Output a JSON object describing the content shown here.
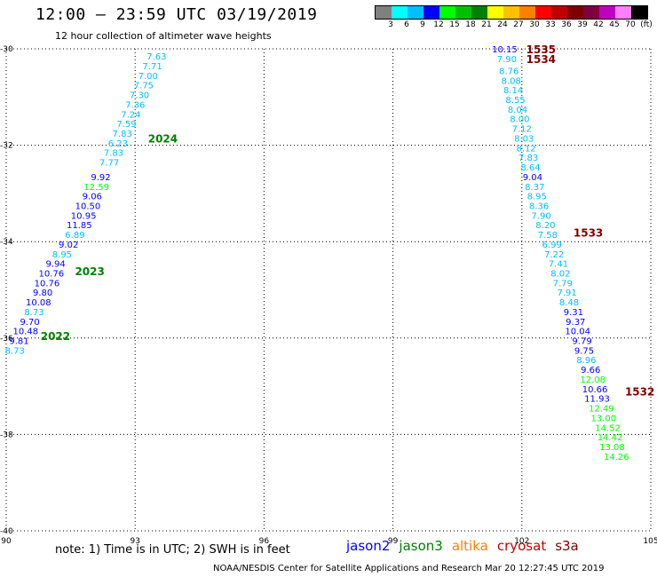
{
  "header": {
    "title": "12:00 – 23:59 UTC 03/19/2019",
    "subtitle": "12 hour collection of altimeter wave heights"
  },
  "colorbar": {
    "colors": [
      "#808080",
      "#00ffff",
      "#00bfff",
      "#0000ff",
      "#00ff00",
      "#00c000",
      "#008000",
      "#ffff00",
      "#ffc000",
      "#ff8000",
      "#ff0000",
      "#c00000",
      "#800000",
      "#800040",
      "#c000c0",
      "#ff80ff",
      "#000000"
    ],
    "labels": [
      "3",
      "6",
      "9",
      "12",
      "15",
      "18",
      "21",
      "24",
      "27",
      "30",
      "33",
      "36",
      "39",
      "42",
      "45",
      "70",
      "(ft)"
    ]
  },
  "map": {
    "lon_range": [
      90,
      105
    ],
    "lat_range": [
      -40,
      -30
    ],
    "lon_ticks": [
      "90",
      "93",
      "96",
      "99",
      "102",
      "105"
    ],
    "lat_ticks": [
      "-30",
      "-32",
      "-34",
      "-36",
      "-38",
      "-40"
    ],
    "grid": true,
    "passes": [
      {
        "label": "2024",
        "lon": 93.3,
        "lat": -31.85,
        "color": "#008000"
      },
      {
        "label": "2023",
        "lon": 91.6,
        "lat": -34.6,
        "color": "#008000"
      },
      {
        "label": "2022",
        "lon": 90.8,
        "lat": -35.95,
        "color": "#008000"
      },
      {
        "label": "1535",
        "lon": 102.1,
        "lat": -30.0,
        "color": "#800000"
      },
      {
        "label": "1534",
        "lon": 102.1,
        "lat": -30.2,
        "color": "#800000"
      },
      {
        "label": "1533",
        "lon": 103.2,
        "lat": -33.8,
        "color": "#800000"
      },
      {
        "label": "1532",
        "lon": 104.4,
        "lat": -37.1,
        "color": "#800000"
      }
    ],
    "track_points": [
      {
        "v": "7.63",
        "lon": 93.5,
        "lat": -30.15,
        "c": "#00bfff"
      },
      {
        "v": "7.71",
        "lon": 93.4,
        "lat": -30.35,
        "c": "#00bfff"
      },
      {
        "v": "7.00",
        "lon": 93.3,
        "lat": -30.55,
        "c": "#00bfff"
      },
      {
        "v": "7.75",
        "lon": 93.2,
        "lat": -30.75,
        "c": "#00bfff"
      },
      {
        "v": "7.30",
        "lon": 93.1,
        "lat": -30.95,
        "c": "#00bfff"
      },
      {
        "v": "7.36",
        "lon": 93.0,
        "lat": -31.15,
        "c": "#00bfff"
      },
      {
        "v": "7.24",
        "lon": 92.9,
        "lat": -31.35,
        "c": "#00bfff"
      },
      {
        "v": "7.59",
        "lon": 92.8,
        "lat": -31.55,
        "c": "#00bfff"
      },
      {
        "v": "7.83",
        "lon": 92.7,
        "lat": -31.75,
        "c": "#00bfff"
      },
      {
        "v": "6.23",
        "lon": 92.6,
        "lat": -31.95,
        "c": "#00bfff"
      },
      {
        "v": "7.83",
        "lon": 92.5,
        "lat": -32.15,
        "c": "#00bfff"
      },
      {
        "v": "7.77",
        "lon": 92.4,
        "lat": -32.35,
        "c": "#00bfff"
      },
      {
        "v": "9.92",
        "lon": 92.2,
        "lat": -32.65,
        "c": "#0000ff"
      },
      {
        "v": "12.59",
        "lon": 92.1,
        "lat": -32.85,
        "c": "#00ff00"
      },
      {
        "v": "9.06",
        "lon": 92.0,
        "lat": -33.05,
        "c": "#0000ff"
      },
      {
        "v": "10.50",
        "lon": 91.9,
        "lat": -33.25,
        "c": "#0000ff"
      },
      {
        "v": "10.95",
        "lon": 91.8,
        "lat": -33.45,
        "c": "#0000ff"
      },
      {
        "v": "11.85",
        "lon": 91.7,
        "lat": -33.65,
        "c": "#0000ff"
      },
      {
        "v": "6.89",
        "lon": 91.6,
        "lat": -33.85,
        "c": "#00bfff"
      },
      {
        "v": "9.02",
        "lon": 91.45,
        "lat": -34.05,
        "c": "#0000ff"
      },
      {
        "v": "8.95",
        "lon": 91.3,
        "lat": -34.25,
        "c": "#00bfff"
      },
      {
        "v": "9.94",
        "lon": 91.15,
        "lat": -34.45,
        "c": "#0000ff"
      },
      {
        "v": "10.76",
        "lon": 91.05,
        "lat": -34.65,
        "c": "#0000ff"
      },
      {
        "v": "10.76",
        "lon": 90.95,
        "lat": -34.85,
        "c": "#0000ff"
      },
      {
        "v": "9.80",
        "lon": 90.85,
        "lat": -35.05,
        "c": "#0000ff"
      },
      {
        "v": "10.08",
        "lon": 90.75,
        "lat": -35.25,
        "c": "#0000ff"
      },
      {
        "v": "8.73",
        "lon": 90.65,
        "lat": -35.45,
        "c": "#00bfff"
      },
      {
        "v": "9.70",
        "lon": 90.55,
        "lat": -35.65,
        "c": "#0000ff"
      },
      {
        "v": "10.48",
        "lon": 90.45,
        "lat": -35.85,
        "c": "#0000ff"
      },
      {
        "v": "9.81",
        "lon": 90.3,
        "lat": -36.05,
        "c": "#0000ff"
      },
      {
        "v": "8.73",
        "lon": 90.2,
        "lat": -36.25,
        "c": "#00bfff"
      },
      {
        "v": "10.15",
        "lon": 101.6,
        "lat": -30.0,
        "c": "#0000ff"
      },
      {
        "v": "7.90",
        "lon": 101.65,
        "lat": -30.2,
        "c": "#00bfff"
      },
      {
        "v": "8.76",
        "lon": 101.7,
        "lat": -30.45,
        "c": "#00bfff"
      },
      {
        "v": "8.08",
        "lon": 101.75,
        "lat": -30.65,
        "c": "#00bfff"
      },
      {
        "v": "8.14",
        "lon": 101.8,
        "lat": -30.85,
        "c": "#00bfff"
      },
      {
        "v": "8.55",
        "lon": 101.85,
        "lat": -31.05,
        "c": "#00bfff"
      },
      {
        "v": "8.04",
        "lon": 101.9,
        "lat": -31.25,
        "c": "#00bfff"
      },
      {
        "v": "8.00",
        "lon": 101.95,
        "lat": -31.45,
        "c": "#00bfff"
      },
      {
        "v": "7.12",
        "lon": 102.0,
        "lat": -31.65,
        "c": "#00bfff"
      },
      {
        "v": "8.03",
        "lon": 102.05,
        "lat": -31.85,
        "c": "#00bfff"
      },
      {
        "v": "8.12",
        "lon": 102.1,
        "lat": -32.05,
        "c": "#00bfff"
      },
      {
        "v": "7.83",
        "lon": 102.15,
        "lat": -32.25,
        "c": "#00bfff"
      },
      {
        "v": "8.64",
        "lon": 102.2,
        "lat": -32.45,
        "c": "#00bfff"
      },
      {
        "v": "9.04",
        "lon": 102.25,
        "lat": -32.65,
        "c": "#0000ff"
      },
      {
        "v": "8.37",
        "lon": 102.3,
        "lat": -32.85,
        "c": "#00bfff"
      },
      {
        "v": "8.95",
        "lon": 102.35,
        "lat": -33.05,
        "c": "#00bfff"
      },
      {
        "v": "8.36",
        "lon": 102.4,
        "lat": -33.25,
        "c": "#00bfff"
      },
      {
        "v": "7.90",
        "lon": 102.45,
        "lat": -33.45,
        "c": "#00bfff"
      },
      {
        "v": "8.20",
        "lon": 102.55,
        "lat": -33.65,
        "c": "#00bfff"
      },
      {
        "v": "7.58",
        "lon": 102.6,
        "lat": -33.85,
        "c": "#00bfff"
      },
      {
        "v": "6.99",
        "lon": 102.7,
        "lat": -34.05,
        "c": "#00bfff"
      },
      {
        "v": "7.22",
        "lon": 102.75,
        "lat": -34.25,
        "c": "#00bfff"
      },
      {
        "v": "7.41",
        "lon": 102.85,
        "lat": -34.45,
        "c": "#00bfff"
      },
      {
        "v": "8.02",
        "lon": 102.9,
        "lat": -34.65,
        "c": "#00bfff"
      },
      {
        "v": "7.79",
        "lon": 102.95,
        "lat": -34.85,
        "c": "#00bfff"
      },
      {
        "v": "7.91",
        "lon": 103.05,
        "lat": -35.05,
        "c": "#00bfff"
      },
      {
        "v": "8.48",
        "lon": 103.1,
        "lat": -35.25,
        "c": "#00bfff"
      },
      {
        "v": "9.31",
        "lon": 103.2,
        "lat": -35.45,
        "c": "#0000ff"
      },
      {
        "v": "9.37",
        "lon": 103.25,
        "lat": -35.65,
        "c": "#0000ff"
      },
      {
        "v": "10.04",
        "lon": 103.3,
        "lat": -35.85,
        "c": "#0000ff"
      },
      {
        "v": "9.79",
        "lon": 103.4,
        "lat": -36.05,
        "c": "#0000ff"
      },
      {
        "v": "9.75",
        "lon": 103.45,
        "lat": -36.25,
        "c": "#0000ff"
      },
      {
        "v": "8.96",
        "lon": 103.5,
        "lat": -36.45,
        "c": "#00bfff"
      },
      {
        "v": "9.66",
        "lon": 103.6,
        "lat": -36.65,
        "c": "#0000ff"
      },
      {
        "v": "12.08",
        "lon": 103.65,
        "lat": -36.85,
        "c": "#00ff00"
      },
      {
        "v": "10.66",
        "lon": 103.7,
        "lat": -37.05,
        "c": "#0000ff"
      },
      {
        "v": "11.93",
        "lon": 103.75,
        "lat": -37.25,
        "c": "#0000ff"
      },
      {
        "v": "12.49",
        "lon": 103.85,
        "lat": -37.45,
        "c": "#00ff00"
      },
      {
        "v": "13.00",
        "lon": 103.9,
        "lat": -37.65,
        "c": "#00ff00"
      },
      {
        "v": "14.52",
        "lon": 104.0,
        "lat": -37.85,
        "c": "#00ff00"
      },
      {
        "v": "14.42",
        "lon": 104.05,
        "lat": -38.05,
        "c": "#00ff00"
      },
      {
        "v": "13.08",
        "lon": 104.1,
        "lat": -38.25,
        "c": "#00ff00"
      },
      {
        "v": "14.26",
        "lon": 104.2,
        "lat": -38.45,
        "c": "#00ff00"
      }
    ]
  },
  "footer": {
    "note": "note:  1) Time is in UTC;  2) SWH is in feet",
    "legend": [
      {
        "label": "jason2",
        "color": "#0000ff"
      },
      {
        "label": "jason3",
        "color": "#008000"
      },
      {
        "label": "altika",
        "color": "#ff8000"
      },
      {
        "label": "cryosat",
        "color": "#c00000"
      },
      {
        "label": "s3a",
        "color": "#800000"
      }
    ],
    "credit": "NOAA/NESDIS Center for Satellite Applications and Research     Mar 20 12:27:45 UTC 2019"
  }
}
